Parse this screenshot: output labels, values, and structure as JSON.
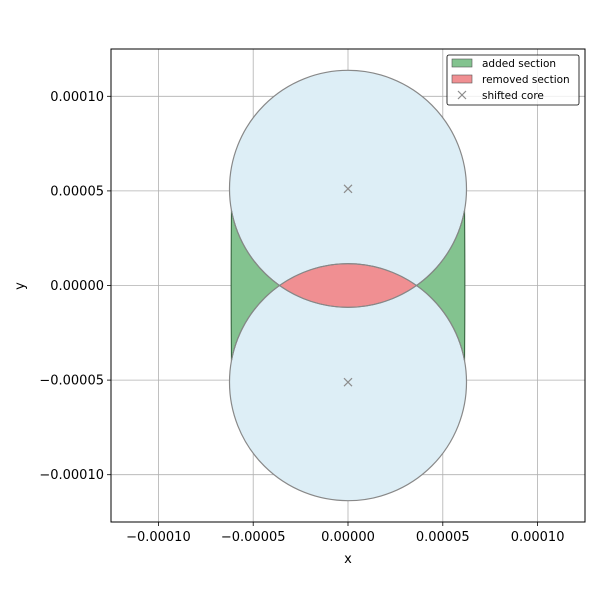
{
  "chart_data": {
    "type": "area",
    "title": "",
    "xlabel": "x",
    "ylabel": "y",
    "xlim": [
      -0.000125,
      0.000125
    ],
    "ylim": [
      -0.000125,
      0.000125
    ],
    "grid": true,
    "legend_placement": "top-right",
    "x_ticks": [
      -0.0001,
      -5e-05,
      0,
      5e-05,
      0.0001
    ],
    "y_ticks": [
      -0.0001,
      -5e-05,
      0,
      5e-05,
      0.0001
    ],
    "x_tick_labels": [
      "−0.00010",
      "−0.00005",
      "0.00000",
      "0.00005",
      "0.00010"
    ],
    "y_tick_labels": [
      "−0.00010",
      "−0.00005",
      "0.00000",
      "0.00005",
      "0.00010"
    ],
    "circles": [
      {
        "center": [
          0,
          5.11e-05
        ],
        "radius": 6.25e-05
      },
      {
        "center": [
          0,
          -5.11e-05
        ],
        "radius": 6.25e-05
      }
    ],
    "added_section": {
      "label": "added section",
      "color": "#83c38f",
      "x_extent": [
        -6.18e-05,
        6.18e-05
      ],
      "y_extent": [
        -3.98e-05,
        3.98e-05
      ]
    },
    "removed_section": {
      "label": "removed section",
      "color": "#f08f92",
      "y_extent": [
        -1.14e-05,
        1.14e-05
      ]
    },
    "shifted_core": {
      "label": "shifted core",
      "marker": "x",
      "color": "#8c8c8c",
      "points": [
        [
          0,
          5.11e-05
        ],
        [
          0,
          -5.11e-05
        ]
      ]
    },
    "circle_fill": "#ddeef6",
    "circle_edge": "#888888"
  }
}
